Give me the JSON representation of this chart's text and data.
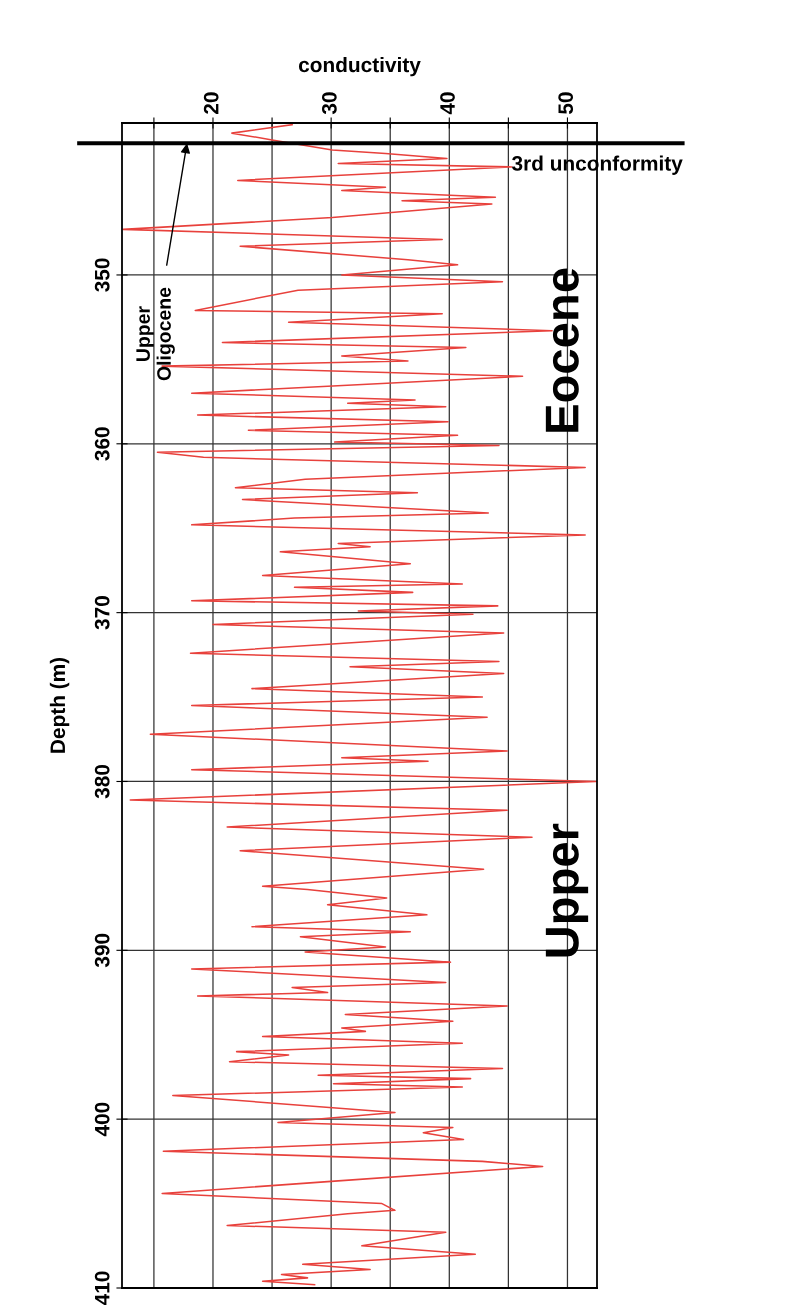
{
  "chart_data": {
    "type": "line",
    "orientation": "horizontal",
    "xlabel": "conductivity",
    "ylabel": "Depth (m)",
    "x": [
      341.1,
      341.6,
      342.0,
      342.6,
      342.8,
      343.1,
      343.4,
      343.6,
      344.4,
      344.8,
      345.0,
      345.4,
      345.6,
      345.8,
      346.6,
      347.3,
      347.9,
      348.3,
      349.1,
      349.4,
      350.0,
      350.4,
      350.9,
      352.1,
      352.3,
      352.8,
      353.3,
      354.0,
      354.3,
      354.8,
      355.1,
      355.4,
      356.0,
      357.0,
      357.4,
      357.6,
      357.8,
      358.3,
      358.7,
      359.2,
      359.5,
      359.9,
      360.1,
      360.5,
      360.8,
      361.4,
      362.1,
      362.6,
      362.9,
      363.3,
      364.1,
      364.4,
      364.8,
      365.4,
      365.9,
      366.1,
      366.4,
      367.1,
      367.8,
      368.3,
      368.5,
      368.8,
      369.3,
      369.6,
      369.9,
      370.1,
      370.7,
      371.2,
      372.4,
      372.9,
      373.2,
      373.6,
      374.5,
      375.0,
      375.5,
      376.2,
      377.2,
      378.2,
      378.6,
      378.8,
      379.3,
      380.0,
      381.1,
      381.7,
      382.7,
      383.3,
      384.1,
      385.2,
      386.2,
      386.4,
      386.9,
      387.3,
      387.9,
      388.6,
      388.9,
      389.2,
      389.8,
      390.1,
      390.7,
      391.1,
      391.9,
      392.2,
      392.5,
      392.7,
      393.3,
      393.8,
      394.2,
      394.6,
      394.8,
      395.1,
      395.5,
      396.0,
      396.2,
      396.6,
      397.0,
      397.4,
      397.6,
      397.9,
      398.1,
      398.6,
      399.6,
      400.2,
      400.5,
      400.8,
      401.2,
      401.9,
      402.5,
      402.8,
      403.7,
      404.4,
      405.0,
      405.4,
      405.6,
      406.3,
      406.7,
      407.5,
      408.0,
      408.6,
      408.9,
      409.2,
      409.4,
      409.6,
      409.8
    ],
    "series": [
      {
        "color": "#e8413c",
        "values": [
          26.7,
          21.6,
          25.0,
          30.1,
          34.6,
          39.8,
          30.6,
          45.3,
          22.1,
          34.6,
          30.9,
          43.9,
          36.0,
          43.6,
          30.1,
          12.4,
          39.4,
          22.3,
          36.5,
          40.7,
          30.9,
          44.5,
          27.2,
          18.5,
          39.4,
          26.4,
          48.7,
          20.8,
          41.4,
          30.9,
          36.5,
          15.7,
          46.2,
          18.2,
          37.1,
          31.4,
          39.7,
          18.7,
          39.9,
          23.0,
          40.7,
          30.3,
          44.2,
          15.3,
          19.2,
          51.5,
          27.8,
          21.9,
          37.3,
          22.5,
          43.3,
          26.9,
          18.2,
          51.5,
          30.6,
          33.3,
          25.7,
          36.7,
          24.2,
          41.1,
          26.9,
          36.9,
          18.2,
          44.1,
          32.3,
          42.0,
          20.0,
          44.6,
          18.1,
          44.2,
          31.6,
          44.6,
          23.3,
          42.8,
          18.2,
          43.2,
          14.7,
          44.9,
          30.9,
          38.2,
          18.2,
          52.4,
          13.0,
          44.9,
          21.2,
          47.0,
          22.3,
          42.9,
          24.2,
          28.0,
          34.7,
          29.7,
          38.1,
          23.3,
          36.7,
          27.4,
          34.6,
          27.8,
          40.1,
          18.2,
          39.7,
          26.7,
          29.7,
          18.7,
          44.9,
          31.2,
          40.3,
          30.9,
          32.9,
          24.2,
          41.1,
          22.0,
          26.4,
          21.4,
          44.5,
          28.9,
          41.8,
          30.2,
          41.1,
          16.6,
          35.4,
          25.5,
          40.3,
          37.8,
          41.2,
          15.8,
          42.8,
          47.9,
          29.7,
          15.7,
          34.3,
          35.4,
          31.4,
          21.2,
          39.7,
          32.6,
          42.2,
          27.6,
          33.3,
          25.8,
          28.0,
          24.2,
          28.6
        ]
      }
    ],
    "xlim": [
      12.3,
      52.5
    ],
    "xticks": [
      {
        "value": 15,
        "label": null
      },
      20,
      {
        "value": 25,
        "label": null
      },
      30,
      {
        "value": 35,
        "label": null
      },
      40,
      {
        "value": 45,
        "label": null
      },
      50
    ],
    "ylim": [
      410,
      341
    ],
    "yticks": [
      350,
      360,
      370,
      380,
      390,
      400,
      410
    ],
    "grid": true,
    "marker": "none",
    "line_style": "solid",
    "ref_lines": [
      {
        "axis": "y",
        "value": 342.2,
        "label": "3rd unconformity",
        "color": "#000000"
      }
    ],
    "annotations": [
      {
        "text": "Upper\nOligocene",
        "x": 17.8,
        "y": 342.2
      },
      "Eocene",
      "Upper"
    ]
  }
}
